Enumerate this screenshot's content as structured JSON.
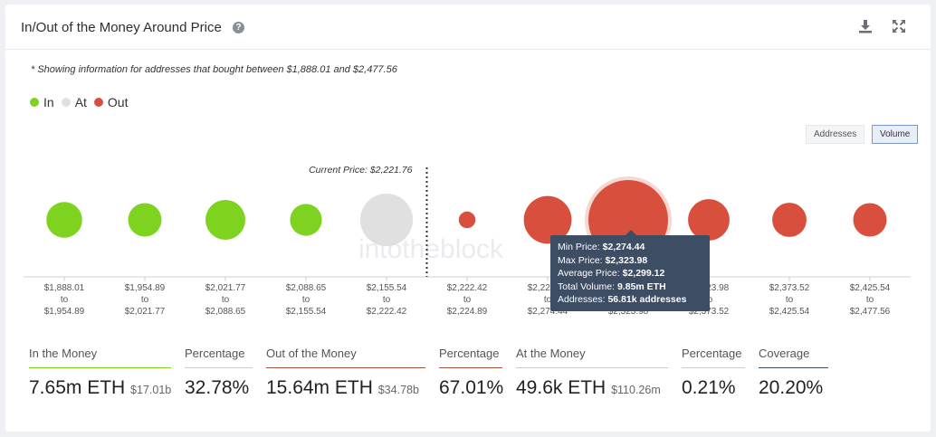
{
  "header": {
    "title": "In/Out of the Money Around Price",
    "help_icon": "question-circle-icon",
    "download_icon": "download-icon",
    "expand_icon": "expand-icon"
  },
  "note": "* Showing information for addresses that bought between $1,888.01 and $2,477.56",
  "legend": [
    {
      "label": "In",
      "color": "#7ed321"
    },
    {
      "label": "At",
      "color": "#e0e0e0"
    },
    {
      "label": "Out",
      "color": "#d94f3d"
    }
  ],
  "toggles": {
    "addresses": "Addresses",
    "volume": "Volume",
    "active": "Volume"
  },
  "chart_data": {
    "type": "bubble",
    "current_price_label": "Current Price: $2,221.76",
    "watermark": "intotheblock",
    "categories": [
      {
        "from": "$1,888.01",
        "to": "$1,954.89",
        "status": "in",
        "relative_size": 0.45
      },
      {
        "from": "$1,954.89",
        "to": "$2,021.77",
        "status": "in",
        "relative_size": 0.42
      },
      {
        "from": "$2,021.77",
        "to": "$2,088.65",
        "status": "in",
        "relative_size": 0.5
      },
      {
        "from": "$2,088.65",
        "to": "$2,155.54",
        "status": "in",
        "relative_size": 0.4
      },
      {
        "from": "$2,155.54",
        "to": "$2,222.42",
        "status": "at",
        "relative_size": 0.66
      },
      {
        "from": "$2,222.42",
        "to": "$2,224.89",
        "status": "out",
        "relative_size": 0.21
      },
      {
        "from": "$2,224.89",
        "to": "$2,274.44",
        "status": "out",
        "relative_size": 0.6
      },
      {
        "from": "$2,274.44",
        "to": "$2,323.98",
        "status": "out",
        "relative_size": 1.0,
        "highlight": true
      },
      {
        "from": "$2,323.98",
        "to": "$2,373.52",
        "status": "out",
        "relative_size": 0.52
      },
      {
        "from": "$2,373.52",
        "to": "$2,425.54",
        "status": "out",
        "relative_size": 0.43
      },
      {
        "from": "$2,425.54",
        "to": "$2,477.56",
        "status": "out",
        "relative_size": 0.42
      }
    ],
    "to_word": "to",
    "tooltip": {
      "min_price_label": "Min Price:",
      "min_price": "$2,274.44",
      "max_price_label": "Max Price:",
      "max_price": "$2,323.98",
      "avg_price_label": "Average Price:",
      "avg_price": "$2,299.12",
      "volume_label": "Total Volume:",
      "volume": "9.85m ETH",
      "addresses_label": "Addresses:",
      "addresses": "56.81k addresses"
    }
  },
  "stats": [
    {
      "label": "In the Money",
      "value": "7.65m ETH",
      "sub": "$17.01b",
      "color": "#7ed321"
    },
    {
      "label": "Percentage",
      "value": "32.78%",
      "sub": "",
      "color": "#cccccc"
    },
    {
      "label": "Out of the Money",
      "value": "15.64m ETH",
      "sub": "$34.78b",
      "color": "#a0523d"
    },
    {
      "label": "Percentage",
      "value": "67.01%",
      "sub": "",
      "color": "#cccccc"
    },
    {
      "label": "At the Money",
      "value": "49.6k ETH",
      "sub": "$110.26m",
      "color": "#cccccc"
    },
    {
      "label": "Percentage",
      "value": "0.21%",
      "sub": "",
      "color": "#cccccc"
    },
    {
      "label": "Coverage",
      "value": "20.20%",
      "sub": "",
      "color": "#3d4d64"
    }
  ]
}
